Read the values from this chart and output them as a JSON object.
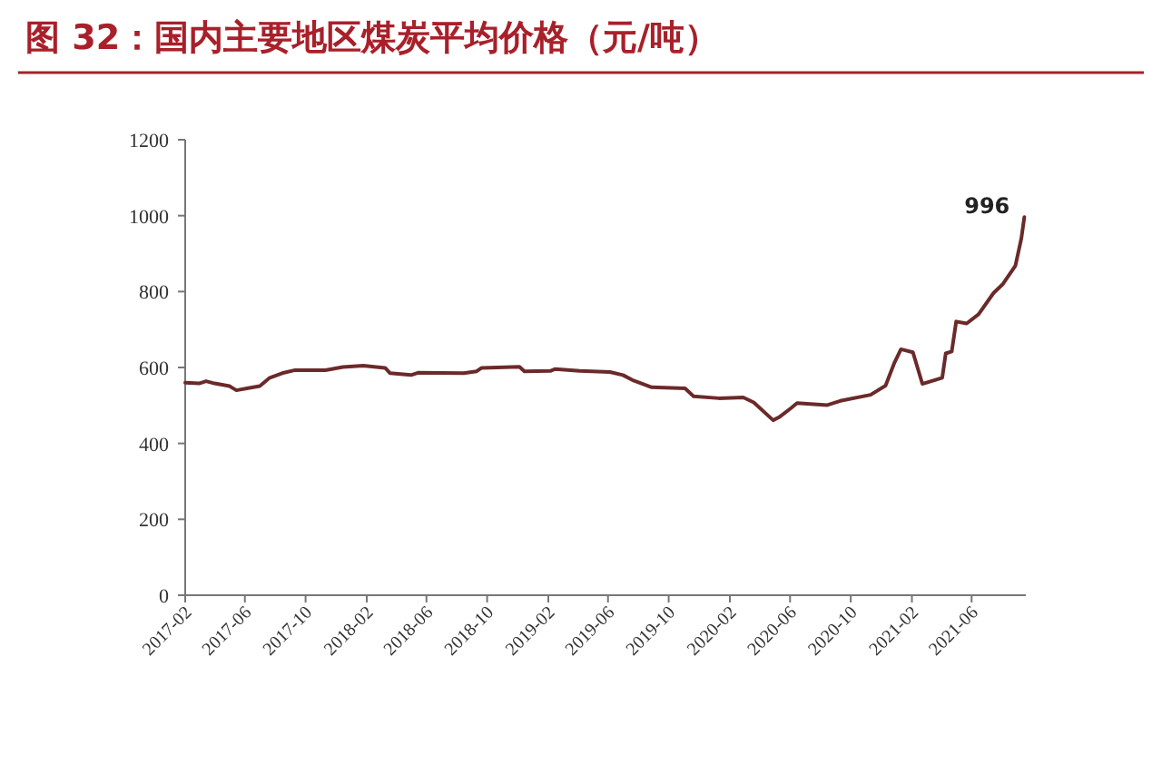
{
  "chart_data": {
    "type": "line",
    "title": "图 32：国内主要地区煤炭平均价格（元/吨）",
    "x": [
      "2017-02-01",
      "2017-03-01",
      "2017-03-15",
      "2017-04-01",
      "2017-05-01",
      "2017-05-15",
      "2017-06-05",
      "2017-07-01",
      "2017-07-20",
      "2017-08-15",
      "2017-09-10",
      "2017-11-10",
      "2017-12-15",
      "2018-01-25",
      "2018-03-10",
      "2018-03-20",
      "2018-05-01",
      "2018-05-15",
      "2018-08-15",
      "2018-09-10",
      "2018-09-20",
      "2018-12-05",
      "2018-12-15",
      "2019-02-05",
      "2019-02-15",
      "2019-04-05",
      "2019-06-05",
      "2019-07-01",
      "2019-07-20",
      "2019-08-28",
      "2019-11-03",
      "2019-11-20",
      "2020-01-10",
      "2020-02-28",
      "2020-03-20",
      "2020-04-28",
      "2020-05-10",
      "2020-06-03",
      "2020-06-15",
      "2020-08-15",
      "2020-09-10",
      "2020-11-10",
      "2020-12-10",
      "2020-12-28",
      "2021-01-10",
      "2021-02-03",
      "2021-02-22",
      "2021-04-03",
      "2021-04-10",
      "2021-04-22",
      "2021-05-01",
      "2021-05-22",
      "2021-06-15",
      "2021-07-15",
      "2021-08-03",
      "2021-08-28",
      "2021-09-09",
      "2021-09-15"
    ],
    "series": [
      {
        "color": "#6b2a2a",
        "values": [
          560,
          558,
          564,
          558,
          551,
          540,
          545,
          551,
          572,
          585,
          593,
          593,
          601,
          605,
          599,
          585,
          580,
          586,
          585,
          590,
          599,
          602,
          590,
          591,
          596,
          591,
          588,
          580,
          567,
          548,
          545,
          524,
          519,
          521,
          508,
          461,
          469,
          493,
          506,
          501,
          512,
          528,
          552,
          613,
          648,
          640,
          557,
          573,
          637,
          642,
          721,
          716,
          740,
          796,
          820,
          868,
          940,
          996
        ]
      }
    ],
    "xlim": [
      "2017-02-01",
      "2021-09-18"
    ],
    "xticks": [
      "2017-02",
      "2017-06",
      "2017-10",
      "2018-02",
      "2018-06",
      "2018-10",
      "2019-02",
      "2019-06",
      "2019-10",
      "2020-02",
      "2020-06",
      "2020-10",
      "2021-02",
      "2021-06"
    ],
    "ylim": [
      0,
      1200
    ],
    "yticks": [
      0,
      200,
      400,
      600,
      800,
      1000,
      1200
    ],
    "annotations": [
      {
        "text": "996",
        "x": "2021-09-15",
        "y": 996
      }
    ],
    "grid": false,
    "marker": "none",
    "line_style": "solid"
  }
}
